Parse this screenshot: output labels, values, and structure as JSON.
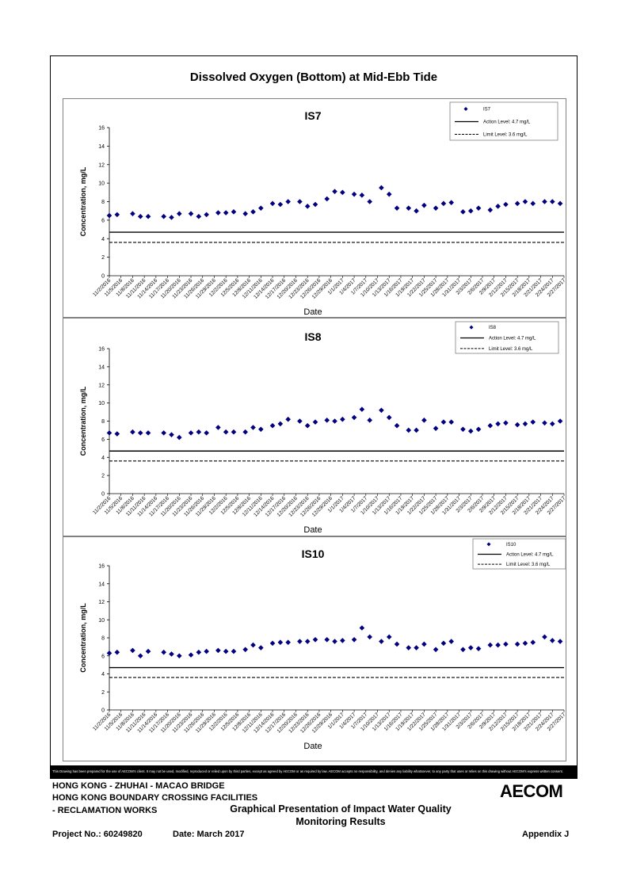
{
  "page_title": "Dissolved Oxygen (Bottom) at Mid-Ebb Tide",
  "chart_data": [
    {
      "type": "scatter",
      "title": "IS7",
      "xlabel": "Date",
      "ylabel": "Concentration, mg/L",
      "ylim": [
        0,
        16
      ],
      "yticks": [
        0,
        2,
        4,
        6,
        8,
        10,
        12,
        14,
        16
      ],
      "xticks": [
        "11/2/2016",
        "11/5/2016",
        "11/8/2016",
        "11/11/2016",
        "11/14/2016",
        "11/17/2016",
        "11/20/2016",
        "11/23/2016",
        "11/26/2016",
        "11/29/2016",
        "12/2/2016",
        "12/5/2016",
        "12/8/2016",
        "12/11/2016",
        "12/14/2016",
        "12/17/2016",
        "12/20/2016",
        "12/23/2016",
        "12/26/2016",
        "12/29/2016",
        "1/1/2017",
        "1/4/2017",
        "1/7/2017",
        "1/10/2017",
        "1/13/2017",
        "1/16/2017",
        "1/19/2017",
        "1/22/2017",
        "1/25/2017",
        "1/28/2017",
        "1/31/2017",
        "2/3/2017",
        "2/6/2017",
        "2/9/2017",
        "2/12/2017",
        "2/15/2017",
        "2/18/2017",
        "2/21/2017",
        "2/24/2017",
        "2/27/2017"
      ],
      "legend": [
        "IS7",
        "Action Level: 4.7 mg/L",
        "Limit Level: 3.6 mg/L"
      ],
      "legend_position": "top-right",
      "action_level": 4.7,
      "limit_level": 3.6,
      "x": [
        "11/2/2016",
        "11/4/2016",
        "11/8/2016",
        "11/10/2016",
        "11/12/2016",
        "11/16/2016",
        "11/18/2016",
        "11/20/2016",
        "11/23/2016",
        "11/25/2016",
        "11/27/2016",
        "11/30/2016",
        "12/2/2016",
        "12/4/2016",
        "12/7/2016",
        "12/9/2016",
        "12/11/2016",
        "12/14/2016",
        "12/16/2016",
        "12/18/2016",
        "12/21/2016",
        "12/23/2016",
        "12/25/2016",
        "12/28/2016",
        "12/30/2016",
        "1/1/2017",
        "1/4/2017",
        "1/6/2017",
        "1/8/2017",
        "1/11/2017",
        "1/13/2017",
        "1/15/2017",
        "1/18/2017",
        "1/20/2017",
        "1/22/2017",
        "1/25/2017",
        "1/27/2017",
        "1/29/2017",
        "2/1/2017",
        "2/3/2017",
        "2/5/2017",
        "2/8/2017",
        "2/10/2017",
        "2/12/2017",
        "2/15/2017",
        "2/17/2017",
        "2/19/2017",
        "2/22/2017",
        "2/24/2017",
        "2/26/2017",
        "2/28/2017"
      ],
      "y": [
        6.5,
        6.6,
        6.7,
        6.4,
        6.4,
        6.4,
        6.3,
        6.7,
        6.7,
        6.4,
        6.6,
        6.8,
        6.8,
        6.9,
        6.7,
        6.9,
        7.3,
        7.8,
        7.7,
        8.0,
        8.0,
        7.5,
        7.7,
        8.3,
        9.1,
        9.0,
        8.8,
        8.7,
        8.0,
        9.5,
        8.8,
        7.3,
        7.3,
        7.0,
        7.6,
        7.3,
        7.8,
        7.9,
        6.9,
        7.0,
        7.3,
        7.1,
        7.5,
        7.7,
        7.8,
        8.0,
        7.8,
        8.0,
        8.0,
        7.8,
        7.7
      ]
    },
    {
      "type": "scatter",
      "title": "IS8",
      "xlabel": "Date",
      "ylabel": "Concentration, mg/L",
      "ylim": [
        0,
        16
      ],
      "yticks": [
        0,
        2,
        4,
        6,
        8,
        10,
        12,
        14,
        16
      ],
      "xticks": [
        "11/2/2016",
        "11/5/2016",
        "11/8/2016",
        "11/11/2016",
        "11/14/2016",
        "11/17/2016",
        "11/20/2016",
        "11/23/2016",
        "11/26/2016",
        "11/29/2016",
        "12/2/2016",
        "12/5/2016",
        "12/8/2016",
        "12/11/2016",
        "12/14/2016",
        "12/17/2016",
        "12/20/2016",
        "12/23/2016",
        "12/26/2016",
        "12/29/2016",
        "1/1/2017",
        "1/4/2017",
        "1/7/2017",
        "1/10/2017",
        "1/13/2017",
        "1/16/2017",
        "1/19/2017",
        "1/22/2017",
        "1/25/2017",
        "1/28/2017",
        "1/31/2017",
        "2/3/2017",
        "2/6/2017",
        "2/9/2017",
        "2/12/2017",
        "2/15/2017",
        "2/18/2017",
        "2/21/2017",
        "2/24/2017",
        "2/27/2017"
      ],
      "legend": [
        "IS8",
        "Action Level: 4.7 mg/L",
        "Limit Level: 3.6 mg/L"
      ],
      "legend_position": "top-right",
      "action_level": 4.7,
      "limit_level": 3.6,
      "x": [
        "11/2/2016",
        "11/4/2016",
        "11/8/2016",
        "11/10/2016",
        "11/12/2016",
        "11/16/2016",
        "11/18/2016",
        "11/20/2016",
        "11/23/2016",
        "11/25/2016",
        "11/27/2016",
        "11/30/2016",
        "12/2/2016",
        "12/4/2016",
        "12/7/2016",
        "12/9/2016",
        "12/11/2016",
        "12/14/2016",
        "12/16/2016",
        "12/18/2016",
        "12/21/2016",
        "12/23/2016",
        "12/25/2016",
        "12/28/2016",
        "12/30/2016",
        "1/1/2017",
        "1/4/2017",
        "1/6/2017",
        "1/8/2017",
        "1/11/2017",
        "1/13/2017",
        "1/15/2017",
        "1/18/2017",
        "1/20/2017",
        "1/22/2017",
        "1/25/2017",
        "1/27/2017",
        "1/29/2017",
        "2/1/2017",
        "2/3/2017",
        "2/5/2017",
        "2/8/2017",
        "2/10/2017",
        "2/12/2017",
        "2/15/2017",
        "2/17/2017",
        "2/19/2017",
        "2/22/2017",
        "2/24/2017",
        "2/26/2017",
        "2/28/2017"
      ],
      "y": [
        6.7,
        6.6,
        6.8,
        6.7,
        6.7,
        6.7,
        6.5,
        6.2,
        6.7,
        6.8,
        6.7,
        7.3,
        6.8,
        6.8,
        6.8,
        7.3,
        7.1,
        7.5,
        7.7,
        8.2,
        8.0,
        7.5,
        7.9,
        8.1,
        8.0,
        8.2,
        8.4,
        9.3,
        8.1,
        9.2,
        8.4,
        7.5,
        7.0,
        7.0,
        8.1,
        7.2,
        7.9,
        7.9,
        7.1,
        6.9,
        7.1,
        7.5,
        7.7,
        7.8,
        7.6,
        7.7,
        7.9,
        7.8,
        7.7,
        8.0,
        7.7
      ]
    },
    {
      "type": "scatter",
      "title": "IS10",
      "xlabel": "Date",
      "ylabel": "Concentration, mg/L",
      "ylim": [
        0,
        16
      ],
      "yticks": [
        0,
        2,
        4,
        6,
        8,
        10,
        12,
        14,
        16
      ],
      "xticks": [
        "11/2/2016",
        "11/5/2016",
        "11/8/2016",
        "11/11/2016",
        "11/14/2016",
        "11/17/2016",
        "11/20/2016",
        "11/23/2016",
        "11/26/2016",
        "11/29/2016",
        "12/2/2016",
        "12/5/2016",
        "12/8/2016",
        "12/11/2016",
        "12/14/2016",
        "12/17/2016",
        "12/20/2016",
        "12/23/2016",
        "12/26/2016",
        "12/29/2016",
        "1/1/2017",
        "1/4/2017",
        "1/7/2017",
        "1/10/2017",
        "1/13/2017",
        "1/16/2017",
        "1/19/2017",
        "1/22/2017",
        "1/25/2017",
        "1/28/2017",
        "1/31/2017",
        "2/3/2017",
        "2/6/2017",
        "2/9/2017",
        "2/12/2017",
        "2/15/2017",
        "2/18/2017",
        "2/21/2017",
        "2/24/2017",
        "2/27/2017"
      ],
      "legend": [
        "IS10",
        "Action Level: 4.7 mg/L",
        "Limit Level: 3.6 mg/L"
      ],
      "legend_position": "top-right",
      "action_level": 4.7,
      "limit_level": 3.6,
      "x": [
        "11/2/2016",
        "11/4/2016",
        "11/8/2016",
        "11/10/2016",
        "11/12/2016",
        "11/16/2016",
        "11/18/2016",
        "11/20/2016",
        "11/23/2016",
        "11/25/2016",
        "11/27/2016",
        "11/30/2016",
        "12/2/2016",
        "12/4/2016",
        "12/7/2016",
        "12/9/2016",
        "12/11/2016",
        "12/14/2016",
        "12/16/2016",
        "12/18/2016",
        "12/21/2016",
        "12/23/2016",
        "12/25/2016",
        "12/28/2016",
        "12/30/2016",
        "1/1/2017",
        "1/4/2017",
        "1/6/2017",
        "1/8/2017",
        "1/11/2017",
        "1/13/2017",
        "1/15/2017",
        "1/18/2017",
        "1/20/2017",
        "1/22/2017",
        "1/25/2017",
        "1/27/2017",
        "1/29/2017",
        "2/1/2017",
        "2/3/2017",
        "2/5/2017",
        "2/8/2017",
        "2/10/2017",
        "2/12/2017",
        "2/15/2017",
        "2/17/2017",
        "2/19/2017",
        "2/22/2017",
        "2/24/2017",
        "2/26/2017",
        "2/28/2017"
      ],
      "y": [
        6.3,
        6.4,
        6.6,
        6.0,
        6.5,
        6.4,
        6.2,
        6.0,
        6.1,
        6.4,
        6.5,
        6.6,
        6.5,
        6.5,
        6.7,
        7.2,
        6.9,
        7.4,
        7.5,
        7.5,
        7.6,
        7.6,
        7.8,
        7.8,
        7.6,
        7.7,
        7.8,
        9.1,
        8.1,
        7.6,
        8.1,
        7.3,
        6.9,
        6.9,
        7.3,
        6.7,
        7.4,
        7.6,
        6.7,
        6.9,
        6.8,
        7.2,
        7.2,
        7.3,
        7.3,
        7.4,
        7.5,
        8.1,
        7.7,
        7.6,
        7.5
      ]
    }
  ],
  "disclaimer": "This Drawing has been prepared for the use of AECOM's client. It may not be used, modified, reproduced or relied upon by third parties, except as agreed by AECOM or as required by law. AECOM accepts no responsibility, and denies any liability whatsoever, to any party that uses or relies on this drawing without AECOM's express written consent.",
  "footer": {
    "line1": "HONG KONG - ZHUHAI - MACAO BRIDGE",
    "line2": "HONG KONG BOUNDARY CROSSING FACILITIES",
    "line3": "- RECLAMATION WORKS",
    "center1": "Graphical Presentation of Impact Water Quality",
    "center2": "Monitoring Results",
    "project": "Project No.: 60249820",
    "date": "Date: March 2017",
    "appendix": "Appendix J",
    "logo": "AECOM"
  }
}
